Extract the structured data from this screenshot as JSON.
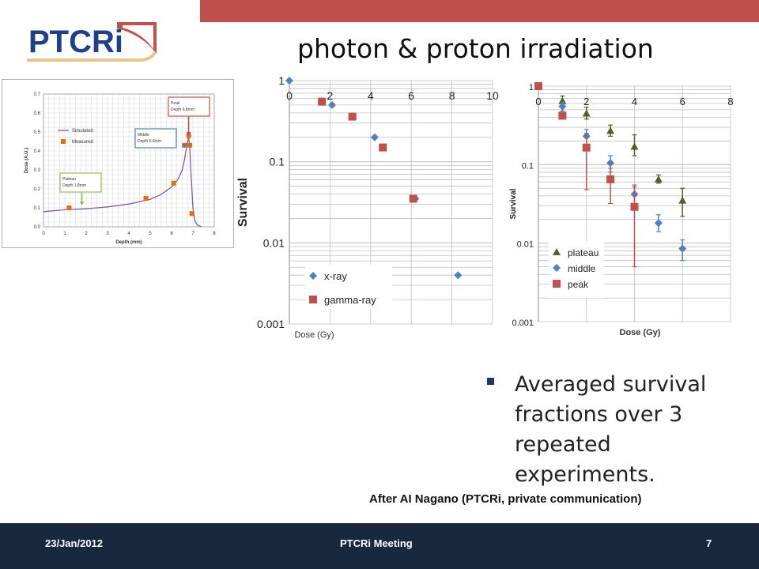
{
  "slide": {
    "title": "photon & proton irradiation",
    "logo_text": "PTCRi",
    "bullet": "Averaged survival fractions over 3 repeated experiments.",
    "credit": "After AI Nagano (PTCRi, private communication)",
    "footer_date": "23/Jan/2012",
    "footer_title": "PTCRi Meeting",
    "page_number": "7"
  },
  "colors": {
    "accent_red": "#c0504d",
    "footer_navy": "#17283f",
    "logo_blue": "#1f3e8c",
    "series_blue": "#4f81bd",
    "series_red": "#c0504d",
    "series_green": "#4f6228",
    "simulated_purple": "#7b5ea7",
    "measured_orange": "#e46c0a"
  },
  "chart_data": [
    {
      "type": "line",
      "xlabel": "Depth (mm)",
      "ylabel": "Dose (A.U.)",
      "xlim": [
        0,
        8
      ],
      "ylim": [
        0,
        0.7
      ],
      "x_ticks": [
        "0",
        "1",
        "2",
        "3",
        "4",
        "5",
        "6",
        "7",
        "8"
      ],
      "y_ticks": [
        "0.0",
        "0.1",
        "0.2",
        "0.3",
        "0.4",
        "0.5",
        "0.6",
        "0.7"
      ],
      "grid": true,
      "legend": "left",
      "series": [
        {
          "name": "Simulated",
          "x": [
            0,
            1,
            2,
            3,
            4,
            5,
            5.5,
            6,
            6.3,
            6.5,
            6.6,
            6.7,
            6.8,
            6.85,
            6.9,
            7.0,
            7.1,
            7.2,
            7.4
          ],
          "y": [
            0.08,
            0.09,
            0.095,
            0.105,
            0.12,
            0.145,
            0.17,
            0.21,
            0.25,
            0.3,
            0.35,
            0.42,
            0.47,
            0.43,
            0.3,
            0.1,
            0.03,
            0.01,
            0.0
          ]
        },
        {
          "name": "Measured",
          "x": [
            1.2,
            4.8,
            6.1,
            6.6,
            6.8,
            6.85,
            6.95
          ],
          "y": [
            0.1,
            0.15,
            0.23,
            0.43,
            0.48,
            0.43,
            0.07
          ]
        }
      ],
      "annotations": [
        {
          "text": "Plateau",
          "sub": "Depth 1.8mm"
        },
        {
          "text": "Middle",
          "sub": "Depth 6.6mm"
        },
        {
          "text": "Peak",
          "sub": "Depth 6.8mm"
        }
      ]
    },
    {
      "type": "scatter",
      "ylabel": "Survival",
      "xlabel": "Dose (Gy)",
      "log_y": true,
      "xlim": [
        0,
        10
      ],
      "ylim": [
        0.001,
        1
      ],
      "x_ticks": [
        "0",
        "2",
        "4",
        "6",
        "8",
        "10"
      ],
      "y_ticks": [
        "1",
        "0.1",
        "0.01",
        "0.001"
      ],
      "grid": true,
      "legend": "bottom-left",
      "series": [
        {
          "name": "x-ray",
          "x": [
            0,
            2.1,
            4.2,
            6.2,
            8.3
          ],
          "y": [
            1,
            0.5,
            0.2,
            0.035,
            0.004
          ]
        },
        {
          "name": "gamma-ray",
          "x": [
            1.6,
            3.1,
            4.6,
            6.1
          ],
          "y": [
            0.55,
            0.36,
            0.15,
            0.035
          ]
        }
      ]
    },
    {
      "type": "scatter",
      "ylabel": "Survival",
      "xlabel": "Dose (Gy)",
      "log_y": true,
      "xlim": [
        0,
        8
      ],
      "ylim": [
        0.001,
        1
      ],
      "x_ticks": [
        "0",
        "2",
        "4",
        "6",
        "8"
      ],
      "y_ticks": [
        "1",
        "0.1",
        "0.01",
        "0.001"
      ],
      "grid": true,
      "legend": "bottom-left",
      "series": [
        {
          "name": "plateau",
          "x": [
            1,
            2,
            3,
            4,
            5,
            6
          ],
          "y": [
            0.65,
            0.45,
            0.27,
            0.17,
            0.065,
            0.035
          ],
          "err_low": [
            0.56,
            0.38,
            0.23,
            0.13,
            0.058,
            0.022
          ],
          "err_high": [
            0.75,
            0.54,
            0.32,
            0.24,
            0.074,
            0.05
          ]
        },
        {
          "name": "middle",
          "x": [
            0,
            1,
            2,
            3,
            4,
            5,
            6
          ],
          "y": [
            1,
            0.55,
            0.23,
            0.105,
            0.042,
            0.018,
            0.0085
          ],
          "err_low": [
            1,
            0.48,
            0.16,
            0.08,
            0.03,
            0.014,
            0.006
          ],
          "err_high": [
            1,
            0.62,
            0.28,
            0.13,
            0.052,
            0.023,
            0.011
          ]
        },
        {
          "name": "peak",
          "x": [
            0,
            1,
            2,
            3,
            4
          ],
          "y": [
            1,
            0.42,
            0.165,
            0.065,
            0.029
          ],
          "err_low": [
            1,
            0.39,
            0.048,
            0.032,
            0.005
          ],
          "err_high": [
            1,
            0.45,
            0.25,
            0.09,
            0.055
          ]
        }
      ]
    }
  ]
}
